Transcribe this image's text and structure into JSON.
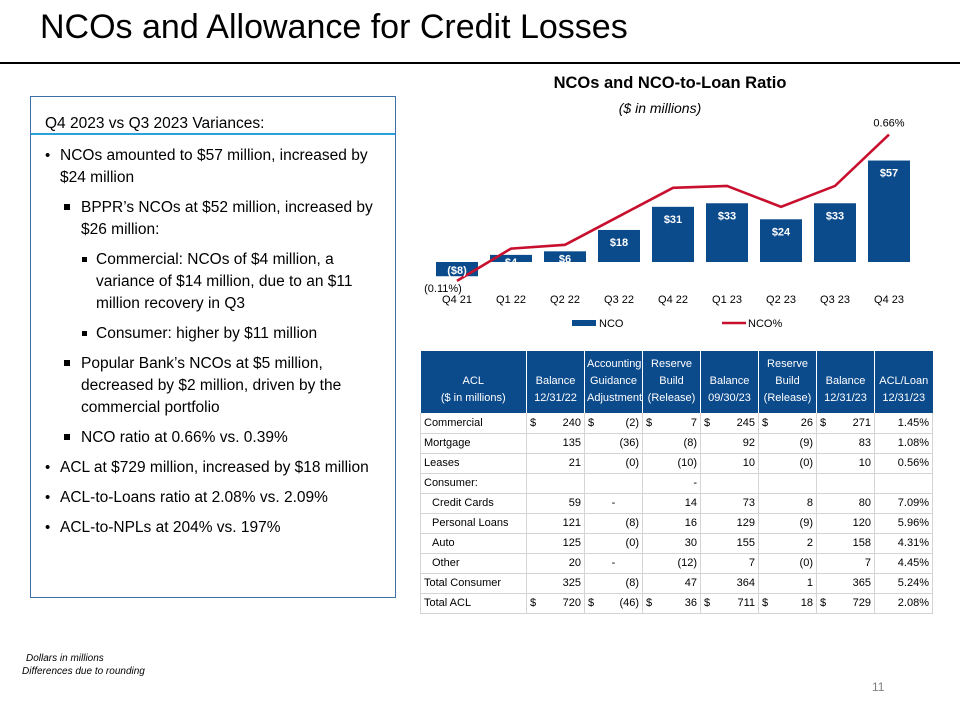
{
  "slide": {
    "title": "NCOs and Allowance for Credit Losses",
    "page_number": "11",
    "footnotes": [
      "Dollars in millions",
      "Differences due to rounding"
    ]
  },
  "variances": {
    "heading": "Q4 2023 vs Q3 2023 Variances:",
    "bullets": [
      {
        "level": 1,
        "text": "NCOs amounted to $57 million, increased by $24 million"
      },
      {
        "level": 2,
        "text": "BPPR’s NCOs at $52 million, increased by $26 million:"
      },
      {
        "level": 3,
        "text": "Commercial: NCOs of $4 million, a variance of $14 million, due to an $11 million recovery in Q3"
      },
      {
        "level": 3,
        "text": "Consumer: higher by $11 million"
      },
      {
        "level": 2,
        "text": "Popular Bank’s NCOs at $5 million, decreased by $2 million, driven by the commercial portfolio"
      },
      {
        "level": 2,
        "text": "NCO ratio at 0.66% vs. 0.39%"
      },
      {
        "level": 1,
        "text": "ACL at $729 million, increased by $18 million"
      },
      {
        "level": 1,
        "text": "ACL-to-Loans ratio at 2.08% vs. 2.09%"
      },
      {
        "level": 1,
        "text": "ACL-to-NPLs at 204% vs. 197%"
      }
    ]
  },
  "colors": {
    "bar": "#0b4a8b",
    "line": "#c8102e",
    "header": "#0b4a8b",
    "panel_rule": "#2aa0dc"
  },
  "chart_data": {
    "type": "bar",
    "title": "NCOs and NCO-to-Loan Ratio",
    "subtitle": "($ in millions)",
    "categories": [
      "Q4 21",
      "Q1 22",
      "Q2 22",
      "Q3 22",
      "Q4 22",
      "Q1 23",
      "Q2 23",
      "Q3 23",
      "Q4 23"
    ],
    "series": [
      {
        "name": "NCO",
        "kind": "bar",
        "values": [
          -8,
          4,
          6,
          18,
          31,
          33,
          24,
          33,
          57
        ],
        "labels": [
          "($8)",
          "$4",
          "$6",
          "$18",
          "$31",
          "$33",
          "$24",
          "$33",
          "$57"
        ]
      },
      {
        "name": "NCO%",
        "kind": "line",
        "values": [
          -0.11,
          0.06,
          0.08,
          0.23,
          0.38,
          0.39,
          0.28,
          0.39,
          0.66
        ],
        "labels": [
          "(0.11%)",
          "",
          "",
          "",
          "",
          "",
          "",
          "",
          "0.66%"
        ]
      }
    ],
    "legend": "bottom",
    "legend_entries": [
      "NCO",
      "NCO%"
    ]
  },
  "acl_table": {
    "headers": [
      [
        "ACL",
        "($ in millions)"
      ],
      [
        "Balance",
        "12/31/22"
      ],
      [
        "Accounting",
        "Guidance",
        "Adjustment"
      ],
      [
        "Reserve",
        "Build",
        "(Release)"
      ],
      [
        "Balance",
        "09/30/23"
      ],
      [
        "Reserve",
        "Build",
        "(Release)"
      ],
      [
        "Balance",
        "12/31/23"
      ],
      [
        "ACL/Loan",
        "12/31/23"
      ]
    ],
    "rows": [
      {
        "label": "Commercial",
        "indent": false,
        "dollar": true,
        "values": [
          "240",
          "(2)",
          "7",
          "245",
          "26",
          "271",
          "1.45%"
        ]
      },
      {
        "label": "Mortgage",
        "indent": false,
        "dollar": false,
        "values": [
          "135",
          "(36)",
          "(8)",
          "92",
          "(9)",
          "83",
          "1.08%"
        ]
      },
      {
        "label": "Leases",
        "indent": false,
        "dollar": false,
        "values": [
          "21",
          "(0)",
          "(10)",
          "10",
          "(0)",
          "10",
          "0.56%"
        ]
      },
      {
        "label": "Consumer:",
        "indent": false,
        "dollar": false,
        "values": [
          "",
          "",
          "-",
          "",
          "",
          "",
          ""
        ]
      },
      {
        "label": "Credit Cards",
        "indent": true,
        "dollar": false,
        "values": [
          "59",
          "-",
          "14",
          "73",
          "8",
          "80",
          "7.09%"
        ]
      },
      {
        "label": "Personal Loans",
        "indent": true,
        "dollar": false,
        "values": [
          "121",
          "(8)",
          "16",
          "129",
          "(9)",
          "120",
          "5.96%"
        ]
      },
      {
        "label": "Auto",
        "indent": true,
        "dollar": false,
        "values": [
          "125",
          "(0)",
          "30",
          "155",
          "2",
          "158",
          "4.31%"
        ]
      },
      {
        "label": "Other",
        "indent": true,
        "dollar": false,
        "values": [
          "20",
          "-",
          "(12)",
          "7",
          "(0)",
          "7",
          "4.45%"
        ]
      },
      {
        "label": "Total Consumer",
        "indent": false,
        "dollar": false,
        "values": [
          "325",
          "(8)",
          "47",
          "364",
          "1",
          "365",
          "5.24%"
        ]
      },
      {
        "label": "Total ACL",
        "indent": false,
        "dollar": true,
        "values": [
          "720",
          "(46)",
          "36",
          "711",
          "18",
          "729",
          "2.08%"
        ]
      }
    ]
  }
}
